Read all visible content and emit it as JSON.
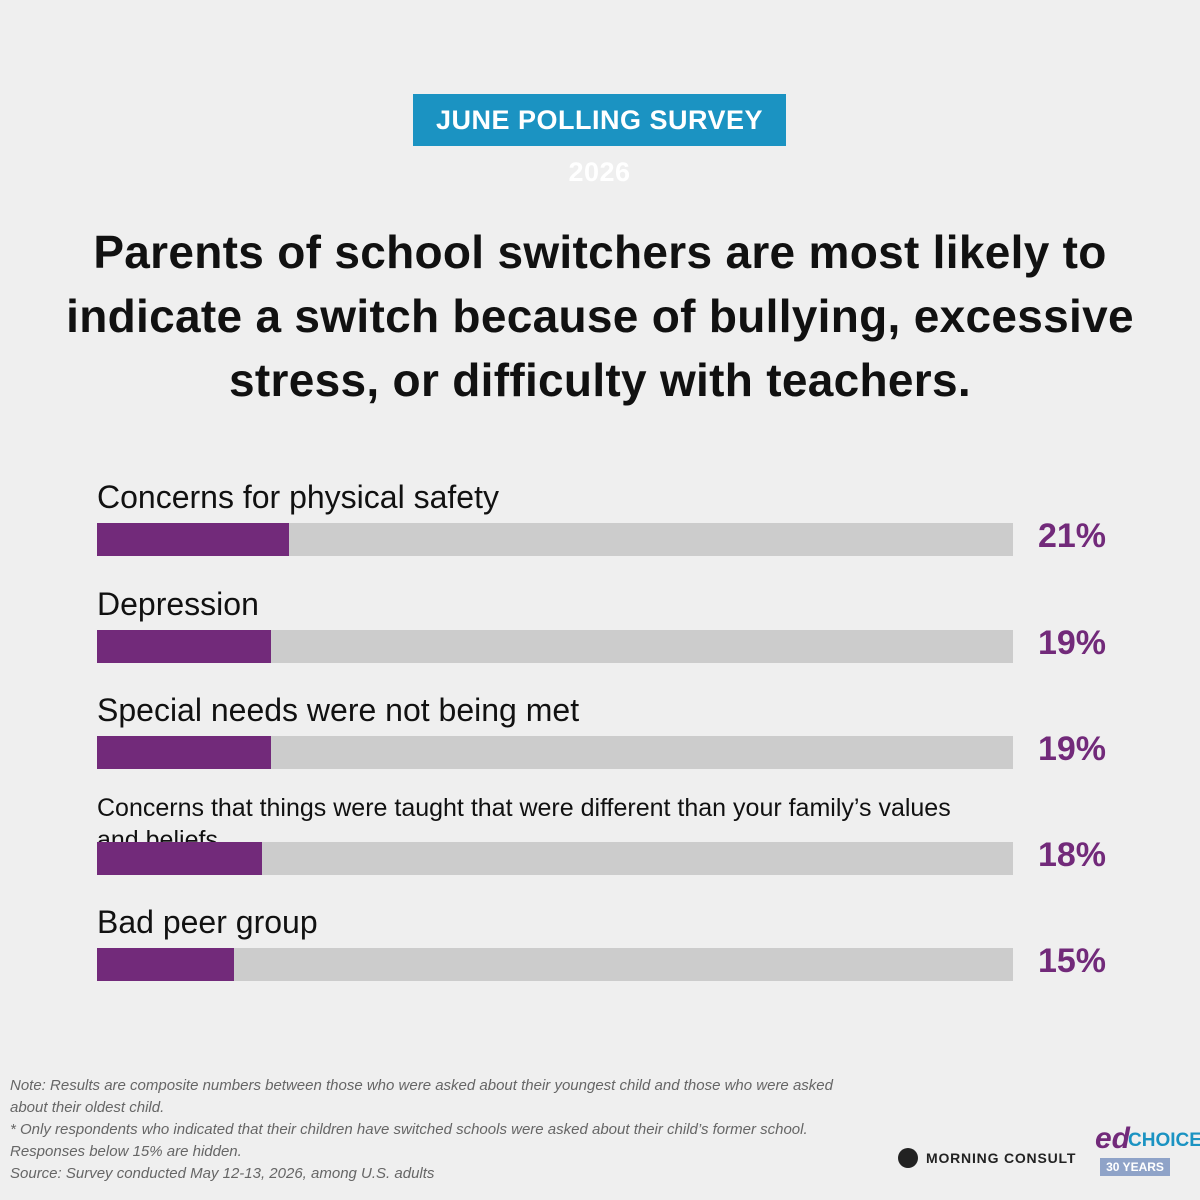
{
  "chart_data": {
    "type": "bar",
    "badge": "JUNE POLLING SURVEY 2026",
    "title": "Parents of school switchers are most likely to indicate a switch because of bullying, excessive stress, or difficulty with teachers.",
    "categories": [
      "Concerns for physical safety",
      "Depression",
      "Special needs were not being met",
      "Concerns that things were taught that were different than your family’s values and beliefs",
      "Bad peer group"
    ],
    "values": [
      21,
      19,
      19,
      18,
      15
    ],
    "value_labels": [
      "21%",
      "19%",
      "19%",
      "18%",
      "15%"
    ],
    "color": "#722a7a",
    "track_color": "#cccccc",
    "xlim": [
      0,
      100
    ],
    "notes": [
      "Note: Results are composite numbers between those who were asked about their youngest child and those who were asked about their oldest child.",
      "* Only respondents who indicated that their children have switched schools were asked about their child’s former school. Responses below 15% are hidden.",
      "Source: Survey conducted May 12-13, 2026, among U.S. adults"
    ],
    "logos": {
      "morning_consult": "MORNING CONSULT",
      "ed": "ed",
      "choice": "CHOICE",
      "anniversary": "30 YEARS"
    }
  }
}
